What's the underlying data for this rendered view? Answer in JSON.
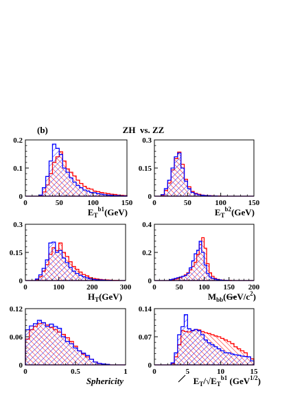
{
  "figure": {
    "panel_label": "(b)",
    "title": "ZH  vs. ZZ",
    "colors": {
      "zh": "#ff0000",
      "zz": "#0000ff",
      "axis": "#000000"
    }
  },
  "chart_data": [
    {
      "type": "histogram",
      "id": "etb1",
      "xlabel": "E_T^b1(GeV)",
      "xlim": [
        0,
        150
      ],
      "ylim": [
        0,
        0.2
      ],
      "xticks": [
        "0",
        "50",
        "100",
        "150"
      ],
      "yticks": [
        "0",
        "0.1",
        "0.2"
      ],
      "bin_width": 5,
      "series": [
        {
          "values": [
            0,
            0,
            0,
            0,
            0.002,
            0.015,
            0.04,
            0.08,
            0.12,
            0.14,
            0.158,
            0.125,
            0.097,
            0.085,
            0.072,
            0.057,
            0.045,
            0.035,
            0.028,
            0.025,
            0.018,
            0.016,
            0.013,
            0.011,
            0.009,
            0.007,
            0.006,
            0.004,
            0.003,
            0.002
          ]
        },
        {
          "values": [
            0,
            0,
            0,
            0,
            0.004,
            0.03,
            0.07,
            0.125,
            0.185,
            0.17,
            0.148,
            0.1,
            0.085,
            0.065,
            0.05,
            0.038,
            0.03,
            0.022,
            0.018,
            0.013,
            0.012,
            0.009,
            0.007,
            0.005,
            0.004,
            0.003,
            0.002,
            0.002,
            0.001,
            0.001
          ]
        }
      ]
    },
    {
      "type": "histogram",
      "id": "etb2",
      "xlabel": "E_T^b2(GeV)",
      "xlim": [
        0,
        150
      ],
      "ylim": [
        0,
        0.3
      ],
      "xticks": [
        "0",
        "50",
        "100",
        "150"
      ],
      "yticks": [
        "0",
        "0.15",
        "0.3"
      ],
      "bin_width": 5,
      "series": [
        {
          "values": [
            0,
            0,
            0.005,
            0.03,
            0.07,
            0.14,
            0.2,
            0.235,
            0.17,
            0.09,
            0.05,
            0.025,
            0.015,
            0.01,
            0.006,
            0.004,
            0.003,
            0.002,
            0.001,
            0.001,
            0,
            0,
            0,
            0,
            0,
            0,
            0,
            0,
            0,
            0
          ]
        },
        {
          "values": [
            0,
            0,
            0.008,
            0.04,
            0.085,
            0.15,
            0.21,
            0.23,
            0.15,
            0.08,
            0.04,
            0.02,
            0.012,
            0.007,
            0.005,
            0.003,
            0.002,
            0.001,
            0.001,
            0,
            0,
            0,
            0,
            0,
            0,
            0,
            0,
            0,
            0,
            0
          ]
        }
      ]
    },
    {
      "type": "histogram",
      "id": "ht",
      "xlabel": "H_T(GeV)",
      "xlim": [
        0,
        300
      ],
      "ylim": [
        0,
        0.3
      ],
      "xticks": [
        "0",
        "100",
        "200",
        "300"
      ],
      "yticks": [
        "0",
        "0.15",
        "0.3"
      ],
      "bin_width": 10,
      "series": [
        {
          "values": [
            0,
            0,
            0,
            0.005,
            0.02,
            0.05,
            0.085,
            0.14,
            0.175,
            0.16,
            0.2,
            0.15,
            0.128,
            0.1,
            0.075,
            0.06,
            0.045,
            0.032,
            0.025,
            0.015,
            0.011,
            0.008,
            0.006,
            0.004,
            0.003,
            0.002,
            0.001,
            0.001,
            0,
            0
          ]
        },
        {
          "values": [
            0,
            0,
            0,
            0.008,
            0.03,
            0.065,
            0.11,
            0.2,
            0.205,
            0.15,
            0.16,
            0.12,
            0.095,
            0.07,
            0.05,
            0.038,
            0.028,
            0.02,
            0.014,
            0.009,
            0.006,
            0.004,
            0.003,
            0.002,
            0.001,
            0.001,
            0,
            0,
            0,
            0
          ]
        }
      ]
    },
    {
      "type": "histogram",
      "id": "mbb",
      "xlabel": "M_bb(GeV/c^2)",
      "xlim": [
        0,
        200
      ],
      "ylim": [
        0,
        0.4
      ],
      "xticks": [
        "0",
        "50",
        "100",
        "150",
        "200"
      ],
      "yticks": [
        "0",
        "0.2",
        "0.4"
      ],
      "bin_width": 5,
      "series": [
        {
          "values": [
            0,
            0,
            0,
            0,
            0,
            0,
            0.003,
            0.006,
            0.01,
            0.015,
            0.02,
            0.03,
            0.04,
            0.055,
            0.075,
            0.1,
            0.13,
            0.185,
            0.255,
            0.305,
            0.23,
            0.12,
            0.055,
            0.03,
            0.015,
            0.008,
            0.005,
            0.003,
            0.002,
            0.001,
            0.001,
            0,
            0,
            0,
            0,
            0,
            0,
            0,
            0,
            0
          ]
        },
        {
          "values": [
            0,
            0,
            0,
            0,
            0,
            0,
            0.006,
            0.01,
            0.015,
            0.02,
            0.025,
            0.03,
            0.035,
            0.05,
            0.09,
            0.14,
            0.19,
            0.215,
            0.28,
            0.2,
            0.11,
            0.05,
            0.025,
            0.015,
            0.01,
            0.006,
            0.004,
            0.002,
            0.001,
            0.001,
            0,
            0,
            0,
            0,
            0,
            0,
            0,
            0,
            0,
            0
          ]
        }
      ]
    },
    {
      "type": "histogram",
      "id": "sph",
      "xlabel": "Sphericity",
      "xlim": [
        0,
        1
      ],
      "ylim": [
        0,
        0.12
      ],
      "xticks": [
        "0",
        "0.5",
        "1"
      ],
      "yticks": [
        "0",
        "0.06",
        "0.12"
      ],
      "bin_width": 0.04,
      "series": [
        {
          "values": [
            0.055,
            0.075,
            0.082,
            0.088,
            0.09,
            0.085,
            0.08,
            0.075,
            0.07,
            0.065,
            0.058,
            0.05,
            0.04,
            0.03,
            0.023,
            0.017,
            0.012,
            0.006,
            0.003,
            0.002,
            0.001,
            0,
            0,
            0,
            0
          ]
        },
        {
          "values": [
            0.075,
            0.083,
            0.088,
            0.095,
            0.09,
            0.082,
            0.087,
            0.082,
            0.078,
            0.06,
            0.05,
            0.045,
            0.036,
            0.03,
            0.025,
            0.02,
            0.012,
            0.006,
            0.003,
            0.002,
            0.001,
            0,
            0,
            0,
            0
          ]
        }
      ]
    },
    {
      "type": "histogram",
      "id": "met",
      "xlabel": "E_T/√E_T^b1 (GeV^1/2)",
      "xlim": [
        0,
        15
      ],
      "ylim": [
        0,
        0.14
      ],
      "xticks": [
        "0",
        "5",
        "10",
        "15"
      ],
      "yticks": [
        "0",
        "0.07",
        "0.14"
      ],
      "bin_width": 0.5,
      "series": [
        {
          "values": [
            0,
            0,
            0,
            0,
            0,
            0.003,
            0.02,
            0.05,
            0.085,
            0.083,
            0.082,
            0.086,
            0.088,
            0.087,
            0.083,
            0.08,
            0.078,
            0.075,
            0.072,
            0.07,
            0.066,
            0.062,
            0.058,
            0.053,
            0.045,
            0.04,
            0.035,
            0.03,
            0.02,
            0.015
          ]
        },
        {
          "values": [
            0,
            0,
            0,
            0,
            0,
            0.005,
            0.03,
            0.075,
            0.095,
            0.125,
            0.09,
            0.085,
            0.088,
            0.085,
            0.075,
            0.062,
            0.055,
            0.05,
            0.045,
            0.04,
            0.035,
            0.03,
            0.03,
            0.027,
            0.025,
            0.024,
            0.022,
            0.021,
            0.02,
            0.01
          ]
        }
      ]
    }
  ]
}
